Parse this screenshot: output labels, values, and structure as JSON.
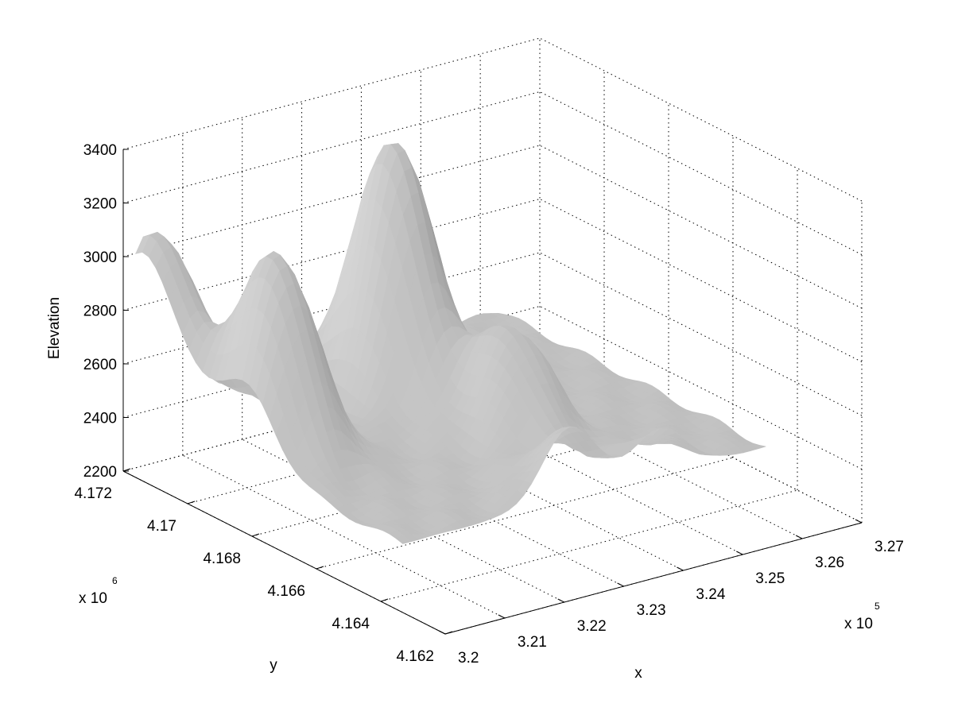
{
  "chart_data": {
    "type": "surface",
    "title": "",
    "xlabel": "x",
    "ylabel": "y",
    "zlabel": "Elevation",
    "x_multiplier": "x 10",
    "x_multiplier_exp": "5",
    "y_multiplier": "x 10",
    "y_multiplier_exp": "6",
    "xlim": [
      3.2,
      3.27
    ],
    "ylim": [
      4.162,
      4.172
    ],
    "zlim": [
      2200,
      3400
    ],
    "x_ticks": [
      "3.2",
      "3.21",
      "3.22",
      "3.23",
      "3.24",
      "3.25",
      "3.26",
      "3.27"
    ],
    "y_ticks": [
      "4.162",
      "4.164",
      "4.166",
      "4.168",
      "4.17",
      "4.172"
    ],
    "z_ticks": [
      "2200",
      "2400",
      "2600",
      "2800",
      "3000",
      "3200",
      "3400"
    ],
    "grid": true,
    "colormap": "gray",
    "colors": {
      "surface_light": "#c8c8c8",
      "surface_dark": "#5a5a5a"
    },
    "peaks": [
      {
        "x": 3.203,
        "y": 4.1715,
        "z": 3100
      },
      {
        "x": 3.207,
        "y": 4.1685,
        "z": 3180
      },
      {
        "x": 3.232,
        "y": 4.1695,
        "z": 3390
      },
      {
        "x": 3.236,
        "y": 4.1665,
        "z": 2840
      },
      {
        "x": 3.229,
        "y": 4.1632,
        "z": 2720
      },
      {
        "x": 3.244,
        "y": 4.1628,
        "z": 2660
      }
    ],
    "valley_floor_elevation": 2440
  }
}
